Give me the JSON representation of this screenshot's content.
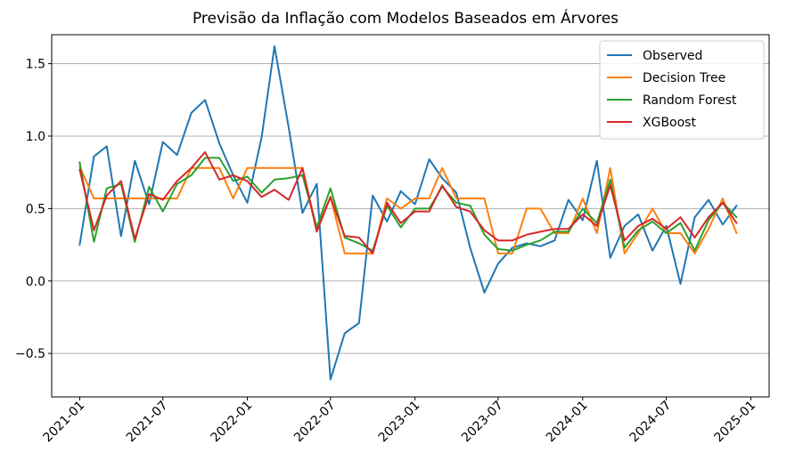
{
  "chart_data": {
    "type": "line",
    "title": "Previsão da Inflação com Modelos Baseados em Árvores",
    "xlabel": "",
    "ylabel": "",
    "x_ticks": [
      "2021-01",
      "2021-07",
      "2022-01",
      "2022-07",
      "2023-01",
      "2023-07",
      "2024-01",
      "2024-07",
      "2025-01"
    ],
    "y_ticks": [
      "−0.5",
      "0.0",
      "0.5",
      "1.0",
      "1.5"
    ],
    "y_tick_values": [
      -0.5,
      0.0,
      0.5,
      1.0,
      1.5
    ],
    "ylim": [
      -0.8,
      1.7
    ],
    "xlim": [
      "2020-11-01",
      "2025-02-10"
    ],
    "grid": "horizontal",
    "legend_position": "top-right",
    "x": [
      "2021-01",
      "2021-02",
      "2021-03",
      "2021-04",
      "2021-05",
      "2021-06",
      "2021-07",
      "2021-08",
      "2021-09",
      "2021-10",
      "2021-11",
      "2021-12",
      "2022-01",
      "2022-02",
      "2022-03",
      "2022-04",
      "2022-05",
      "2022-06",
      "2022-07",
      "2022-08",
      "2022-09",
      "2022-10",
      "2022-11",
      "2022-12",
      "2023-01",
      "2023-02",
      "2023-03",
      "2023-04",
      "2023-05",
      "2023-06",
      "2023-07",
      "2023-08",
      "2023-09",
      "2023-10",
      "2023-11",
      "2023-12",
      "2024-01",
      "2024-02",
      "2024-03",
      "2024-04",
      "2024-05",
      "2024-06",
      "2024-07",
      "2024-08",
      "2024-09",
      "2024-10",
      "2024-11",
      "2024-12"
    ],
    "series": [
      {
        "name": "Observed",
        "color": "#1f77b4",
        "values": [
          0.25,
          0.86,
          0.93,
          0.31,
          0.83,
          0.53,
          0.96,
          0.87,
          1.16,
          1.25,
          0.95,
          0.73,
          0.54,
          0.99,
          1.62,
          1.06,
          0.47,
          0.67,
          -0.68,
          -0.36,
          -0.29,
          0.59,
          0.41,
          0.62,
          0.53,
          0.84,
          0.71,
          0.61,
          0.23,
          -0.08,
          0.12,
          0.23,
          0.26,
          0.24,
          0.28,
          0.56,
          0.42,
          0.83,
          0.16,
          0.38,
          0.46,
          0.21,
          0.38,
          -0.02,
          0.44,
          0.56,
          0.39,
          0.52
        ]
      },
      {
        "name": "Decision Tree",
        "color": "#ff7f0e",
        "values": [
          0.79,
          0.57,
          0.57,
          0.57,
          0.57,
          0.57,
          0.57,
          0.57,
          0.78,
          0.78,
          0.78,
          0.57,
          0.78,
          0.78,
          0.78,
          0.78,
          0.78,
          0.36,
          0.58,
          0.19,
          0.19,
          0.19,
          0.57,
          0.5,
          0.57,
          0.57,
          0.78,
          0.57,
          0.57,
          0.57,
          0.19,
          0.19,
          0.5,
          0.5,
          0.33,
          0.33,
          0.57,
          0.33,
          0.78,
          0.19,
          0.33,
          0.5,
          0.33,
          0.33,
          0.19,
          0.36,
          0.57,
          0.33
        ]
      },
      {
        "name": "Random Forest",
        "color": "#2ca02c",
        "values": [
          0.82,
          0.27,
          0.64,
          0.67,
          0.27,
          0.65,
          0.48,
          0.67,
          0.73,
          0.85,
          0.85,
          0.69,
          0.72,
          0.61,
          0.7,
          0.71,
          0.73,
          0.37,
          0.64,
          0.3,
          0.26,
          0.21,
          0.52,
          0.37,
          0.5,
          0.5,
          0.65,
          0.54,
          0.52,
          0.32,
          0.22,
          0.21,
          0.25,
          0.28,
          0.34,
          0.34,
          0.5,
          0.4,
          0.7,
          0.23,
          0.35,
          0.41,
          0.33,
          0.4,
          0.21,
          0.42,
          0.54,
          0.44
        ]
      },
      {
        "name": "XGBoost",
        "color": "#d62728",
        "values": [
          0.77,
          0.35,
          0.59,
          0.69,
          0.29,
          0.6,
          0.56,
          0.69,
          0.78,
          0.89,
          0.7,
          0.73,
          0.69,
          0.58,
          0.63,
          0.56,
          0.78,
          0.34,
          0.58,
          0.31,
          0.3,
          0.19,
          0.54,
          0.4,
          0.48,
          0.48,
          0.66,
          0.51,
          0.48,
          0.35,
          0.28,
          0.28,
          0.32,
          0.34,
          0.36,
          0.36,
          0.46,
          0.38,
          0.66,
          0.28,
          0.38,
          0.43,
          0.36,
          0.44,
          0.3,
          0.44,
          0.54,
          0.4
        ]
      }
    ]
  }
}
